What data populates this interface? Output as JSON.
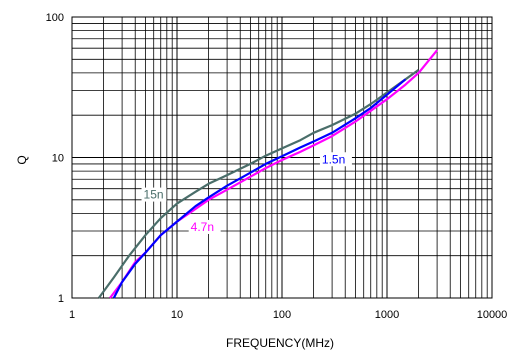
{
  "chart_data": {
    "type": "line",
    "title": "",
    "xlabel": "FREQUENCY(MHz)",
    "ylabel": "Q",
    "xscale": "log",
    "yscale": "log",
    "xlim": [
      1,
      10000
    ],
    "ylim": [
      1,
      100
    ],
    "x_ticks": [
      "1",
      "10",
      "100",
      "1000",
      "10000"
    ],
    "y_ticks": [
      "1",
      "10",
      "100"
    ],
    "grid": true,
    "series": [
      {
        "name": "15n",
        "color": "#4a6e6a",
        "x": [
          1.8,
          2.5,
          3.5,
          5,
          7,
          10,
          15,
          20,
          30,
          50,
          70,
          100,
          150,
          200,
          300,
          500,
          700,
          1000,
          1500,
          2000
        ],
        "y": [
          1.0,
          1.4,
          2.0,
          2.8,
          3.7,
          4.7,
          5.7,
          6.5,
          7.5,
          9.0,
          10.3,
          11.6,
          13.3,
          15.0,
          17.0,
          20.5,
          24.0,
          29.0,
          36.0,
          42.0
        ]
      },
      {
        "name": "4.7n",
        "color": "#ff00ff",
        "x": [
          2.3,
          3,
          4,
          5,
          7,
          10,
          15,
          20,
          30,
          50,
          70,
          100,
          150,
          200,
          300,
          500,
          700,
          1000,
          1500,
          2000,
          3000
        ],
        "y": [
          1.0,
          1.3,
          1.8,
          2.1,
          2.8,
          3.5,
          4.3,
          5.0,
          5.9,
          7.3,
          8.4,
          9.6,
          11.0,
          12.2,
          14.2,
          18.0,
          21.5,
          26.0,
          33.0,
          40.0,
          58.0
        ]
      },
      {
        "name": "1.5n",
        "color": "#0000ff",
        "x": [
          2.5,
          3,
          4,
          5,
          7,
          10,
          15,
          20,
          30,
          50,
          70,
          100,
          150,
          200,
          300,
          500,
          700,
          1000,
          1500
        ],
        "y": [
          1.0,
          1.3,
          1.75,
          2.1,
          2.8,
          3.5,
          4.5,
          5.2,
          6.3,
          7.8,
          9.0,
          10.2,
          11.8,
          13.0,
          15.0,
          19.0,
          22.5,
          28.0,
          36.0
        ]
      }
    ]
  }
}
